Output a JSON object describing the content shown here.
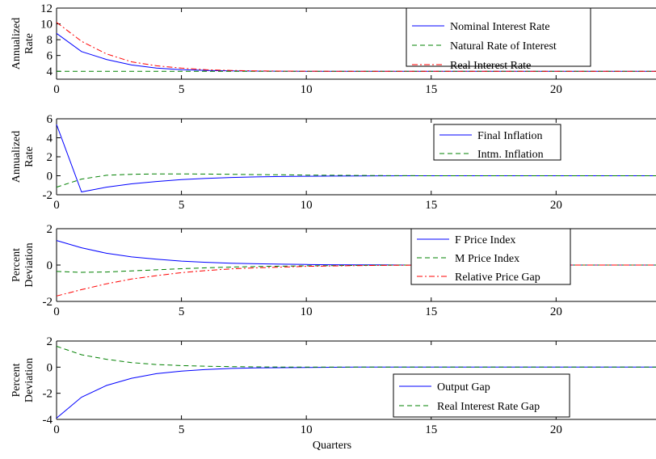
{
  "chart_data": [
    {
      "type": "line",
      "ylabel": [
        "Annualized",
        "Rate"
      ],
      "xlabel": "",
      "xlim": [
        0,
        24
      ],
      "ylim": [
        3,
        12
      ],
      "xticks": [
        0,
        5,
        10,
        15,
        20
      ],
      "yticks": [
        4,
        6,
        8,
        10,
        12
      ],
      "legend_position": "top-right",
      "series": [
        {
          "name": "Nominal Interest Rate",
          "color": "#0000ff",
          "dash": "solid",
          "x": [
            0,
            1,
            2,
            3,
            4,
            5,
            6,
            7,
            8,
            9,
            10,
            11,
            12,
            13,
            14,
            15,
            16,
            17,
            18,
            19,
            20,
            21,
            22,
            23,
            24
          ],
          "y": [
            8.8,
            6.5,
            5.5,
            4.8,
            4.4,
            4.2,
            4.1,
            4.05,
            4.02,
            4.01,
            4.0,
            4.0,
            4.0,
            4.0,
            4.0,
            4.0,
            4.0,
            4.0,
            4.0,
            4.0,
            4.0,
            4.0,
            4.0,
            4.0,
            4.0
          ]
        },
        {
          "name": "Natural Rate of Interest",
          "color": "#008000",
          "dash": "dashed",
          "x": [
            0,
            24
          ],
          "y": [
            4.0,
            4.0
          ]
        },
        {
          "name": "Real Interest Rate",
          "color": "#ff0000",
          "dash": "dashdot",
          "x": [
            0,
            1,
            2,
            3,
            4,
            5,
            6,
            7,
            8,
            9,
            10,
            11,
            12,
            13,
            14,
            15,
            16,
            17,
            18,
            19,
            20,
            21,
            22,
            23,
            24
          ],
          "y": [
            10.2,
            7.8,
            6.2,
            5.2,
            4.7,
            4.4,
            4.2,
            4.1,
            4.05,
            4.02,
            4.01,
            4.0,
            4.0,
            4.0,
            4.0,
            4.0,
            4.0,
            4.0,
            4.0,
            4.0,
            4.0,
            4.0,
            4.0,
            4.0,
            4.0
          ]
        }
      ]
    },
    {
      "type": "line",
      "ylabel": [
        "Annualized",
        "Rate"
      ],
      "xlabel": "",
      "xlim": [
        0,
        24
      ],
      "ylim": [
        -2,
        6
      ],
      "xticks": [
        0,
        5,
        10,
        15,
        20
      ],
      "yticks": [
        -2,
        0,
        2,
        4,
        6
      ],
      "legend_position": "top-right",
      "series": [
        {
          "name": "Final Inflation",
          "color": "#0000ff",
          "dash": "solid",
          "x": [
            0,
            1,
            2,
            3,
            4,
            5,
            6,
            7,
            8,
            9,
            10,
            11,
            12,
            13,
            14,
            15,
            16,
            17,
            18,
            19,
            20,
            21,
            22,
            23,
            24
          ],
          "y": [
            5.4,
            -1.7,
            -1.2,
            -0.85,
            -0.6,
            -0.4,
            -0.27,
            -0.18,
            -0.12,
            -0.08,
            -0.05,
            -0.03,
            -0.02,
            -0.01,
            0,
            0,
            0,
            0,
            0,
            0,
            0,
            0,
            0,
            0,
            0
          ]
        },
        {
          "name": "Intm. Inflation",
          "color": "#008000",
          "dash": "dashed",
          "x": [
            0,
            1,
            2,
            3,
            4,
            5,
            6,
            7,
            8,
            9,
            10,
            11,
            12,
            13,
            14,
            15,
            16,
            17,
            18,
            19,
            20,
            21,
            22,
            23,
            24
          ],
          "y": [
            -1.2,
            -0.35,
            0.05,
            0.15,
            0.2,
            0.2,
            0.18,
            0.15,
            0.12,
            0.1,
            0.07,
            0.05,
            0.03,
            0.02,
            0.01,
            0,
            0,
            0,
            0,
            0,
            0,
            0,
            0,
            0,
            0
          ]
        }
      ]
    },
    {
      "type": "line",
      "ylabel": [
        "Percent",
        "Deviation"
      ],
      "xlabel": "",
      "xlim": [
        0,
        24
      ],
      "ylim": [
        -2,
        2
      ],
      "xticks": [
        0,
        5,
        10,
        15,
        20
      ],
      "yticks": [
        -2,
        0,
        2
      ],
      "legend_position": "top-right",
      "series": [
        {
          "name": "F Price Index",
          "color": "#0000ff",
          "dash": "solid",
          "x": [
            0,
            1,
            2,
            3,
            4,
            5,
            6,
            7,
            8,
            9,
            10,
            11,
            12,
            13,
            14,
            15,
            16,
            17,
            18,
            19,
            20,
            21,
            22,
            23,
            24
          ],
          "y": [
            1.35,
            0.95,
            0.65,
            0.45,
            0.32,
            0.22,
            0.15,
            0.1,
            0.07,
            0.05,
            0.03,
            0.02,
            0.01,
            0.01,
            0,
            0,
            0,
            0,
            0,
            0,
            0,
            0,
            0,
            0,
            0
          ]
        },
        {
          "name": "M Price Index",
          "color": "#008000",
          "dash": "dashed",
          "x": [
            0,
            1,
            2,
            3,
            4,
            5,
            6,
            7,
            8,
            9,
            10,
            11,
            12,
            13,
            14,
            15,
            16,
            17,
            18,
            19,
            20,
            21,
            22,
            23,
            24
          ],
          "y": [
            -0.35,
            -0.4,
            -0.38,
            -0.32,
            -0.26,
            -0.2,
            -0.15,
            -0.11,
            -0.08,
            -0.06,
            -0.04,
            -0.03,
            -0.02,
            -0.01,
            0,
            0,
            0,
            0,
            0,
            0,
            0,
            0,
            0,
            0,
            0
          ]
        },
        {
          "name": "Relative Price Gap",
          "color": "#ff0000",
          "dash": "dashdot",
          "x": [
            0,
            1,
            2,
            3,
            4,
            5,
            6,
            7,
            8,
            9,
            10,
            11,
            12,
            13,
            14,
            15,
            16,
            17,
            18,
            19,
            20,
            21,
            22,
            23,
            24
          ],
          "y": [
            -1.7,
            -1.35,
            -1.03,
            -0.77,
            -0.58,
            -0.42,
            -0.3,
            -0.21,
            -0.15,
            -0.11,
            -0.07,
            -0.05,
            -0.03,
            -0.02,
            -0.01,
            0,
            0,
            0,
            0,
            0,
            0,
            0,
            0,
            0,
            0
          ]
        }
      ]
    },
    {
      "type": "line",
      "ylabel": [
        "Percent",
        "Deviation"
      ],
      "xlabel": "Quarters",
      "xlim": [
        0,
        24
      ],
      "ylim": [
        -4,
        2
      ],
      "xticks": [
        0,
        5,
        10,
        15,
        20
      ],
      "yticks": [
        -4,
        -2,
        0,
        2
      ],
      "legend_position": "bottom-right",
      "series": [
        {
          "name": "Output Gap",
          "color": "#0000ff",
          "dash": "solid",
          "x": [
            0,
            1,
            2,
            3,
            4,
            5,
            6,
            7,
            8,
            9,
            10,
            11,
            12,
            13,
            14,
            15,
            16,
            17,
            18,
            19,
            20,
            21,
            22,
            23,
            24
          ],
          "y": [
            -3.9,
            -2.3,
            -1.4,
            -0.85,
            -0.5,
            -0.3,
            -0.18,
            -0.1,
            -0.06,
            -0.04,
            -0.02,
            -0.01,
            0,
            0,
            0,
            0,
            0,
            0,
            0,
            0,
            0,
            0,
            0,
            0,
            0
          ]
        },
        {
          "name": "Real Interest Rate Gap",
          "color": "#008000",
          "dash": "dashed",
          "x": [
            0,
            1,
            2,
            3,
            4,
            5,
            6,
            7,
            8,
            9,
            10,
            11,
            12,
            13,
            14,
            15,
            16,
            17,
            18,
            19,
            20,
            21,
            22,
            23,
            24
          ],
          "y": [
            1.6,
            0.95,
            0.6,
            0.35,
            0.2,
            0.12,
            0.07,
            0.04,
            0.02,
            0.01,
            0,
            0,
            0,
            0,
            0,
            0,
            0,
            0,
            0,
            0,
            0,
            0,
            0,
            0,
            0
          ]
        }
      ]
    }
  ]
}
